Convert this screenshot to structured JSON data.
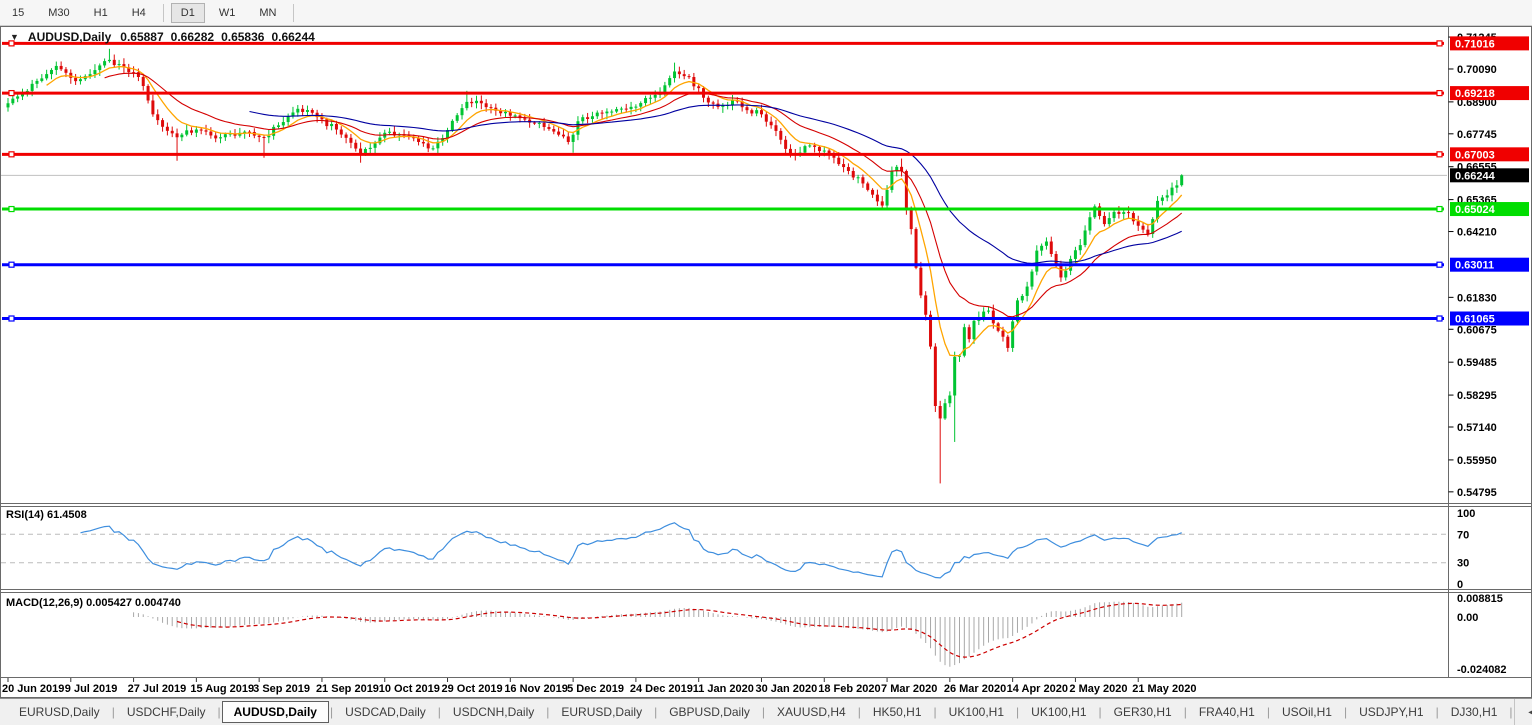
{
  "toolbar": {
    "timeframes": [
      "15",
      "M30",
      "H1",
      "H4",
      "D1",
      "W1",
      "MN"
    ],
    "active": "D1"
  },
  "chart": {
    "symbol": "AUDUSD,Daily",
    "open": "0.65887",
    "high": "0.66282",
    "low": "0.65836",
    "close": "0.66244",
    "dropdown_icon": "▼"
  },
  "price_axis": {
    "ticks": [
      "0.71245",
      "0.70090",
      "0.68900",
      "0.67745",
      "0.66555",
      "0.65365",
      "0.64210",
      "0.61830",
      "0.60675",
      "0.59485",
      "0.58295",
      "0.57140",
      "0.55950",
      "0.54795"
    ],
    "current": "0.66244",
    "current_bg": "#000000"
  },
  "indicators": {
    "rsi": {
      "name": "RSI(14)",
      "value": "61.4508",
      "scale": [
        "100",
        "70",
        "30",
        "0"
      ]
    },
    "macd": {
      "name": "MACD(12,26,9)",
      "value": "0.005427 0.004740",
      "scale": [
        "0.008815",
        "0.00",
        "-0.024082"
      ]
    }
  },
  "tab_bar": {
    "tabs": [
      "EURUSD,Daily",
      "USDCHF,Daily",
      "AUDUSD,Daily",
      "USDCAD,Daily",
      "USDCNH,Daily",
      "EURUSD,Daily",
      "GBPUSD,Daily",
      "XAUUSD,H4",
      "HK50,H1",
      "UK100,H1",
      "UK100,H1",
      "GER30,H1",
      "FRA40,H1",
      "USOil,H1",
      "USDJPY,H1",
      "DJ30,H1"
    ],
    "active_index": 2,
    "scroll_left": "◄",
    "scroll_right": "►"
  },
  "chart_data": {
    "type": "candlestick",
    "symbol": "AUDUSD",
    "timeframe": "Daily",
    "candle_count": 244,
    "price_top": 0.715,
    "price_bottom": 0.545,
    "up_color": "#00C432",
    "down_color": "#DE0A0A",
    "current_price": 0.66244,
    "current_line_color": "#C0C0C0",
    "last_candle": {
      "open": 0.65887,
      "high": 0.66282,
      "low": 0.65836,
      "close": 0.66244
    },
    "close_anchors": [
      [
        0,
        0.6885
      ],
      [
        3,
        0.692
      ],
      [
        7,
        0.6975
      ],
      [
        10,
        0.702
      ],
      [
        14,
        0.6965
      ],
      [
        18,
        0.7005
      ],
      [
        21,
        0.7042
      ],
      [
        24,
        0.7015
      ],
      [
        27,
        0.698
      ],
      [
        29,
        0.6895
      ],
      [
        30,
        0.6845
      ],
      [
        32,
        0.68
      ],
      [
        35,
        0.6762
      ],
      [
        39,
        0.679
      ],
      [
        43,
        0.6758
      ],
      [
        48,
        0.6778
      ],
      [
        53,
        0.6762
      ],
      [
        56,
        0.6805
      ],
      [
        60,
        0.6865
      ],
      [
        64,
        0.6835
      ],
      [
        68,
        0.679
      ],
      [
        71,
        0.6742
      ],
      [
        73,
        0.6702
      ],
      [
        76,
        0.674
      ],
      [
        79,
        0.6782
      ],
      [
        82,
        0.6768
      ],
      [
        85,
        0.6745
      ],
      [
        88,
        0.6722
      ],
      [
        91,
        0.6788
      ],
      [
        95,
        0.689
      ],
      [
        98,
        0.6885
      ],
      [
        101,
        0.6858
      ],
      [
        104,
        0.684
      ],
      [
        108,
        0.6815
      ],
      [
        112,
        0.6792
      ],
      [
        116,
        0.6745
      ],
      [
        118,
        0.682
      ],
      [
        121,
        0.6838
      ],
      [
        125,
        0.6855
      ],
      [
        129,
        0.6872
      ],
      [
        133,
        0.6905
      ],
      [
        136,
        0.695
      ],
      [
        138,
        0.7
      ],
      [
        141,
        0.698
      ],
      [
        144,
        0.6905
      ],
      [
        147,
        0.6872
      ],
      [
        150,
        0.6895
      ],
      [
        153,
        0.686
      ],
      [
        156,
        0.6845
      ],
      [
        159,
        0.6785
      ],
      [
        161,
        0.672
      ],
      [
        163,
        0.6698
      ],
      [
        165,
        0.673
      ],
      [
        168,
        0.6712
      ],
      [
        171,
        0.6688
      ],
      [
        174,
        0.664
      ],
      [
        177,
        0.6595
      ],
      [
        181,
        0.6515
      ],
      [
        183,
        0.664
      ],
      [
        184,
        0.6655
      ],
      [
        185,
        0.664
      ],
      [
        186,
        0.65
      ],
      [
        187,
        0.643
      ],
      [
        188,
        0.629
      ],
      [
        189,
        0.619
      ],
      [
        190,
        0.612
      ],
      [
        191,
        0.6005
      ],
      [
        192,
        0.579
      ],
      [
        193,
        0.5745
      ],
      [
        194,
        0.58
      ],
      [
        195,
        0.5828
      ],
      [
        196,
        0.5968
      ],
      [
        197,
        0.5972
      ],
      [
        198,
        0.6075
      ],
      [
        199,
        0.6032
      ],
      [
        200,
        0.6098
      ],
      [
        203,
        0.6135
      ],
      [
        205,
        0.6062
      ],
      [
        207,
        0.6
      ],
      [
        209,
        0.6172
      ],
      [
        211,
        0.6222
      ],
      [
        213,
        0.6352
      ],
      [
        215,
        0.6385
      ],
      [
        218,
        0.6255
      ],
      [
        220,
        0.6322
      ],
      [
        222,
        0.6372
      ],
      [
        225,
        0.6512
      ],
      [
        227,
        0.6448
      ],
      [
        229,
        0.6492
      ],
      [
        232,
        0.6488
      ],
      [
        234,
        0.6442
      ],
      [
        236,
        0.6412
      ],
      [
        238,
        0.6532
      ],
      [
        240,
        0.6552
      ],
      [
        242,
        0.6588
      ],
      [
        243,
        0.66244
      ]
    ],
    "wick_overrides": [
      {
        "i": 21,
        "hi": 0.7082
      },
      {
        "i": 35,
        "lo": 0.6677
      },
      {
        "i": 53,
        "lo": 0.6688
      },
      {
        "i": 73,
        "lo": 0.667
      },
      {
        "i": 95,
        "hi": 0.693
      },
      {
        "i": 117,
        "lo": 0.6706
      },
      {
        "i": 138,
        "hi": 0.7032
      },
      {
        "i": 185,
        "hi": 0.6685
      },
      {
        "i": 193,
        "lo": 0.551
      },
      {
        "i": 196,
        "lo": 0.566
      }
    ],
    "moving_averages": [
      {
        "period": 8,
        "color": "#FFA500"
      },
      {
        "period": 20,
        "color": "#D40000"
      },
      {
        "period": 50,
        "color": "#0000A0"
      }
    ],
    "levels": [
      {
        "price": 0.71016,
        "color": "#F00000"
      },
      {
        "price": 0.69218,
        "color": "#F00000"
      },
      {
        "price": 0.67003,
        "color": "#F00000"
      },
      {
        "price": 0.65024,
        "color": "#00DD00"
      },
      {
        "price": 0.63011,
        "color": "#0000FF"
      },
      {
        "price": 0.61065,
        "color": "#0000FF"
      }
    ],
    "rsi": {
      "period": 14,
      "last": 61.4508,
      "color": "#3E8EDE",
      "guide_levels": [
        70,
        30
      ],
      "axis": [
        100,
        70,
        30,
        0
      ]
    },
    "macd": {
      "fast": 12,
      "slow": 26,
      "signal": 9,
      "hist_color": "#A8A8A8",
      "signal_color": "#CC0000",
      "axis_max": 0.008815,
      "axis_min": -0.024082
    },
    "date_labels": [
      {
        "index": 0,
        "label": "20 Jun 2019"
      },
      {
        "index": 13,
        "label": "9 Jul 2019"
      },
      {
        "index": 26,
        "label": "27 Jul 2019"
      },
      {
        "index": 39,
        "label": "15 Aug 2019"
      },
      {
        "index": 52,
        "label": "3 Sep 2019"
      },
      {
        "index": 65,
        "label": "21 Sep 2019"
      },
      {
        "index": 78,
        "label": "10 Oct 2019"
      },
      {
        "index": 91,
        "label": "29 Oct 2019"
      },
      {
        "index": 104,
        "label": "16 Nov 2019"
      },
      {
        "index": 117,
        "label": "5 Dec 2019"
      },
      {
        "index": 130,
        "label": "24 Dec 2019"
      },
      {
        "index": 143,
        "label": "11 Jan 2020"
      },
      {
        "index": 156,
        "label": "30 Jan 2020"
      },
      {
        "index": 169,
        "label": "18 Feb 2020"
      },
      {
        "index": 182,
        "label": "7 Mar 2020"
      },
      {
        "index": 195,
        "label": "26 Mar 2020"
      },
      {
        "index": 208,
        "label": "14 Apr 2020"
      },
      {
        "index": 221,
        "label": "2 May 2020"
      },
      {
        "index": 234,
        "label": "21 May 2020"
      }
    ]
  }
}
